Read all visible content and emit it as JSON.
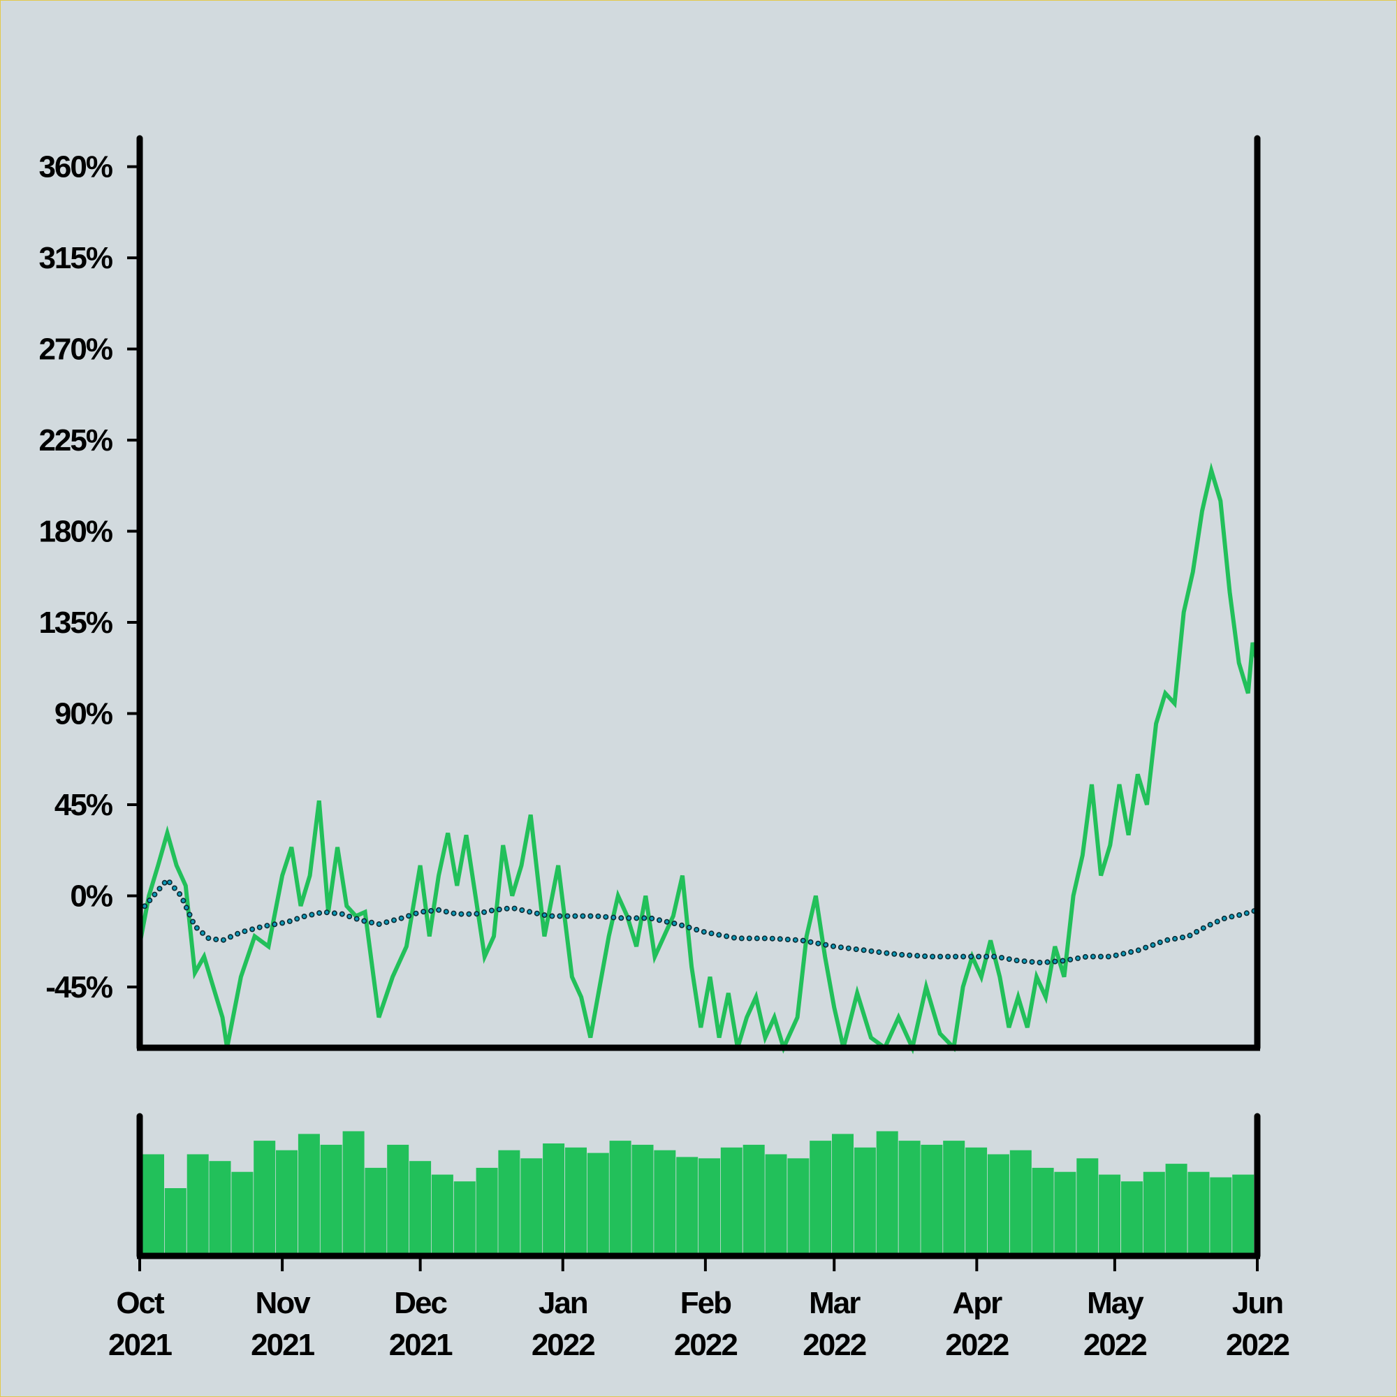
{
  "chart_data": {
    "type": "line",
    "y_axis": {
      "ticks": [
        -45,
        0,
        45,
        90,
        135,
        180,
        225,
        270,
        315,
        360
      ],
      "tick_labels": [
        "-45%",
        "0%",
        "45%",
        "90%",
        "135%",
        "180%",
        "225%",
        "270%",
        "315%",
        "360%"
      ],
      "ylim": [
        -75,
        374
      ],
      "unit": "%"
    },
    "x_axis": {
      "range": [
        "2021-10-01",
        "2022-06-01"
      ],
      "ticks": [
        "2021-10-01",
        "2021-11-01",
        "2021-12-01",
        "2022-01-01",
        "2022-02-01",
        "2022-03-01",
        "2022-04-01",
        "2022-05-01",
        "2022-06-01"
      ],
      "tick_labels": [
        [
          "Oct",
          "2021"
        ],
        [
          "Nov",
          "2021"
        ],
        [
          "Dec",
          "2021"
        ],
        [
          "Jan",
          "2022"
        ],
        [
          "Feb",
          "2022"
        ],
        [
          "Mar",
          "2022"
        ],
        [
          "Apr",
          "2022"
        ],
        [
          "May",
          "2022"
        ],
        [
          "Jun",
          "2022"
        ]
      ]
    },
    "series": [
      {
        "kind": "line",
        "color": "#22c05a",
        "points": [
          [
            "2021-10-01",
            -24
          ],
          [
            "2021-10-03",
            0
          ],
          [
            "2021-10-05",
            15
          ],
          [
            "2021-10-07",
            31
          ],
          [
            "2021-10-09",
            15
          ],
          [
            "2021-10-11",
            5
          ],
          [
            "2021-10-13",
            -38
          ],
          [
            "2021-10-15",
            -30
          ],
          [
            "2021-10-17",
            -45
          ],
          [
            "2021-10-19",
            -60
          ],
          [
            "2021-10-20",
            -75
          ],
          [
            "2021-10-23",
            -40
          ],
          [
            "2021-10-26",
            -20
          ],
          [
            "2021-10-29",
            -25
          ],
          [
            "2021-11-01",
            10
          ],
          [
            "2021-11-03",
            24
          ],
          [
            "2021-11-05",
            -5
          ],
          [
            "2021-11-07",
            10
          ],
          [
            "2021-11-09",
            47
          ],
          [
            "2021-11-11",
            -8
          ],
          [
            "2021-11-13",
            24
          ],
          [
            "2021-11-15",
            -5
          ],
          [
            "2021-11-17",
            -10
          ],
          [
            "2021-11-19",
            -8
          ],
          [
            "2021-11-22",
            -60
          ],
          [
            "2021-11-25",
            -40
          ],
          [
            "2021-11-28",
            -25
          ],
          [
            "2021-12-01",
            15
          ],
          [
            "2021-12-03",
            -20
          ],
          [
            "2021-12-05",
            10
          ],
          [
            "2021-12-07",
            31
          ],
          [
            "2021-12-09",
            5
          ],
          [
            "2021-12-11",
            30
          ],
          [
            "2021-12-13",
            0
          ],
          [
            "2021-12-15",
            -30
          ],
          [
            "2021-12-17",
            -20
          ],
          [
            "2021-12-19",
            25
          ],
          [
            "2021-12-21",
            0
          ],
          [
            "2021-12-23",
            15
          ],
          [
            "2021-12-25",
            40
          ],
          [
            "2021-12-28",
            -20
          ],
          [
            "2021-12-31",
            15
          ],
          [
            "2022-01-03",
            -40
          ],
          [
            "2022-01-05",
            -50
          ],
          [
            "2022-01-07",
            -70
          ],
          [
            "2022-01-09",
            -45
          ],
          [
            "2022-01-11",
            -20
          ],
          [
            "2022-01-13",
            0
          ],
          [
            "2022-01-15",
            -10
          ],
          [
            "2022-01-17",
            -25
          ],
          [
            "2022-01-19",
            0
          ],
          [
            "2022-01-21",
            -30
          ],
          [
            "2022-01-23",
            -20
          ],
          [
            "2022-01-25",
            -10
          ],
          [
            "2022-01-27",
            10
          ],
          [
            "2022-01-29",
            -35
          ],
          [
            "2022-01-31",
            -65
          ],
          [
            "2022-02-02",
            -40
          ],
          [
            "2022-02-04",
            -70
          ],
          [
            "2022-02-06",
            -48
          ],
          [
            "2022-02-08",
            -75
          ],
          [
            "2022-02-10",
            -60
          ],
          [
            "2022-02-12",
            -50
          ],
          [
            "2022-02-14",
            -70
          ],
          [
            "2022-02-16",
            -60
          ],
          [
            "2022-02-18",
            -75
          ],
          [
            "2022-02-21",
            -60
          ],
          [
            "2022-02-23",
            -20
          ],
          [
            "2022-02-25",
            0
          ],
          [
            "2022-02-27",
            -30
          ],
          [
            "2022-03-01",
            -55
          ],
          [
            "2022-03-03",
            -75
          ],
          [
            "2022-03-06",
            -48
          ],
          [
            "2022-03-09",
            -70
          ],
          [
            "2022-03-12",
            -75
          ],
          [
            "2022-03-15",
            -60
          ],
          [
            "2022-03-18",
            -75
          ],
          [
            "2022-03-21",
            -45
          ],
          [
            "2022-03-24",
            -68
          ],
          [
            "2022-03-27",
            -75
          ],
          [
            "2022-03-29",
            -45
          ],
          [
            "2022-03-31",
            -30
          ],
          [
            "2022-04-02",
            -40
          ],
          [
            "2022-04-04",
            -22
          ],
          [
            "2022-04-06",
            -40
          ],
          [
            "2022-04-08",
            -65
          ],
          [
            "2022-04-10",
            -50
          ],
          [
            "2022-04-12",
            -65
          ],
          [
            "2022-04-14",
            -40
          ],
          [
            "2022-04-16",
            -50
          ],
          [
            "2022-04-18",
            -25
          ],
          [
            "2022-04-20",
            -40
          ],
          [
            "2022-04-22",
            0
          ],
          [
            "2022-04-24",
            20
          ],
          [
            "2022-04-26",
            55
          ],
          [
            "2022-04-28",
            10
          ],
          [
            "2022-04-30",
            25
          ],
          [
            "2022-05-02",
            55
          ],
          [
            "2022-05-04",
            30
          ],
          [
            "2022-05-06",
            60
          ],
          [
            "2022-05-08",
            45
          ],
          [
            "2022-05-10",
            85
          ],
          [
            "2022-05-12",
            100
          ],
          [
            "2022-05-14",
            95
          ],
          [
            "2022-05-16",
            140
          ],
          [
            "2022-05-18",
            160
          ],
          [
            "2022-05-20",
            190
          ],
          [
            "2022-05-22",
            210
          ],
          [
            "2022-05-24",
            195
          ],
          [
            "2022-05-26",
            150
          ],
          [
            "2022-05-28",
            115
          ],
          [
            "2022-05-30",
            100
          ],
          [
            "2022-05-31",
            125
          ],
          [
            "2022-06-01",
            115
          ]
        ]
      },
      {
        "kind": "dotted-line",
        "color": "#0e9ab8",
        "points": [
          [
            "2021-10-01",
            -8
          ],
          [
            "2021-10-04",
            0
          ],
          [
            "2021-10-07",
            8
          ],
          [
            "2021-10-10",
            0
          ],
          [
            "2021-10-13",
            -15
          ],
          [
            "2021-10-16",
            -21
          ],
          [
            "2021-10-19",
            -22
          ],
          [
            "2021-10-23",
            -18
          ],
          [
            "2021-10-28",
            -15
          ],
          [
            "2021-11-02",
            -13
          ],
          [
            "2021-11-06",
            -10
          ],
          [
            "2021-11-10",
            -8
          ],
          [
            "2021-11-14",
            -9
          ],
          [
            "2021-11-18",
            -12
          ],
          [
            "2021-11-22",
            -14
          ],
          [
            "2021-11-27",
            -11
          ],
          [
            "2021-12-01",
            -8
          ],
          [
            "2021-12-05",
            -7
          ],
          [
            "2021-12-09",
            -9
          ],
          [
            "2021-12-13",
            -9
          ],
          [
            "2021-12-17",
            -7
          ],
          [
            "2021-12-21",
            -6
          ],
          [
            "2021-12-25",
            -8
          ],
          [
            "2021-12-29",
            -10
          ],
          [
            "2022-01-02",
            -10
          ],
          [
            "2022-01-08",
            -10
          ],
          [
            "2022-01-14",
            -11
          ],
          [
            "2022-01-20",
            -11
          ],
          [
            "2022-01-26",
            -14
          ],
          [
            "2022-02-01",
            -18
          ],
          [
            "2022-02-08",
            -21
          ],
          [
            "2022-02-15",
            -21
          ],
          [
            "2022-02-22",
            -22
          ],
          [
            "2022-03-01",
            -25
          ],
          [
            "2022-03-08",
            -27
          ],
          [
            "2022-03-15",
            -29
          ],
          [
            "2022-03-22",
            -30
          ],
          [
            "2022-03-29",
            -30
          ],
          [
            "2022-04-05",
            -30
          ],
          [
            "2022-04-10",
            -32
          ],
          [
            "2022-04-15",
            -33
          ],
          [
            "2022-04-20",
            -32
          ],
          [
            "2022-04-25",
            -30
          ],
          [
            "2022-04-30",
            -30
          ],
          [
            "2022-05-06",
            -27
          ],
          [
            "2022-05-12",
            -22
          ],
          [
            "2022-05-17",
            -20
          ],
          [
            "2022-05-21",
            -15
          ],
          [
            "2022-05-25",
            -11
          ],
          [
            "2022-05-29",
            -9
          ],
          [
            "2022-06-01",
            -7
          ]
        ]
      }
    ],
    "volume_panel": {
      "kind": "bars",
      "color": "#22c05a",
      "relative_scale": [
        0,
        1
      ],
      "levels": [
        0.75,
        0.5,
        0.75,
        0.7,
        0.62,
        0.85,
        0.78,
        0.9,
        0.82,
        0.92,
        0.65,
        0.82,
        0.7,
        0.6,
        0.55,
        0.65,
        0.78,
        0.72,
        0.83,
        0.8,
        0.76,
        0.85,
        0.82,
        0.78,
        0.73,
        0.72,
        0.8,
        0.82,
        0.75,
        0.72,
        0.85,
        0.9,
        0.8,
        0.92,
        0.85,
        0.82,
        0.85,
        0.8,
        0.75,
        0.78,
        0.65,
        0.62,
        0.72,
        0.6,
        0.55,
        0.62,
        0.68,
        0.62,
        0.58,
        0.6
      ]
    }
  }
}
